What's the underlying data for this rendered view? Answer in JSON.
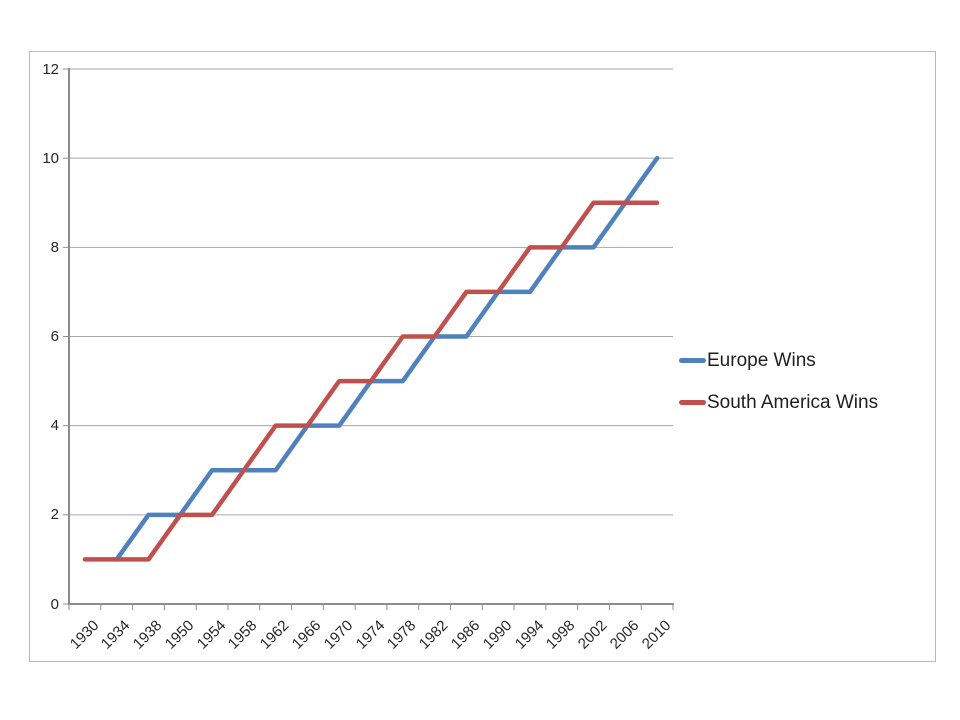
{
  "chart_data": {
    "type": "line",
    "title": "",
    "xlabel": "",
    "ylabel": "",
    "categories": [
      "1930",
      "1934",
      "1938",
      "1950",
      "1954",
      "1958",
      "1962",
      "1966",
      "1970",
      "1974",
      "1978",
      "1982",
      "1986",
      "1990",
      "1994",
      "1998",
      "2002",
      "2006",
      "2010"
    ],
    "series": [
      {
        "name": "Europe Wins",
        "color": "#4F81BD",
        "values": [
          null,
          1,
          2,
          2,
          3,
          3,
          3,
          4,
          4,
          5,
          5,
          6,
          6,
          7,
          7,
          8,
          8,
          9,
          10
        ]
      },
      {
        "name": "South America Wins",
        "color": "#C0504D",
        "values": [
          1,
          1,
          1,
          2,
          2,
          3,
          4,
          4,
          5,
          5,
          6,
          6,
          7,
          7,
          8,
          8,
          9,
          9,
          9
        ]
      }
    ],
    "ylim": [
      0,
      12
    ],
    "y_tick_interval": 2,
    "y_tick_labels": [
      "0",
      "2",
      "4",
      "6",
      "8",
      "10",
      "12"
    ],
    "grid": true,
    "legend_position": "right-middle"
  },
  "colors": {
    "series_europe": "#4F81BD",
    "series_south_america": "#C0504D",
    "gridline": "#a6a6a6",
    "axis": "#8c8c8c",
    "tick": "#8c8c8c",
    "axis_text": "#262626",
    "legend_text": "#1f1f1f",
    "frame_border": "#b9b9b9",
    "background": "#ffffff"
  }
}
